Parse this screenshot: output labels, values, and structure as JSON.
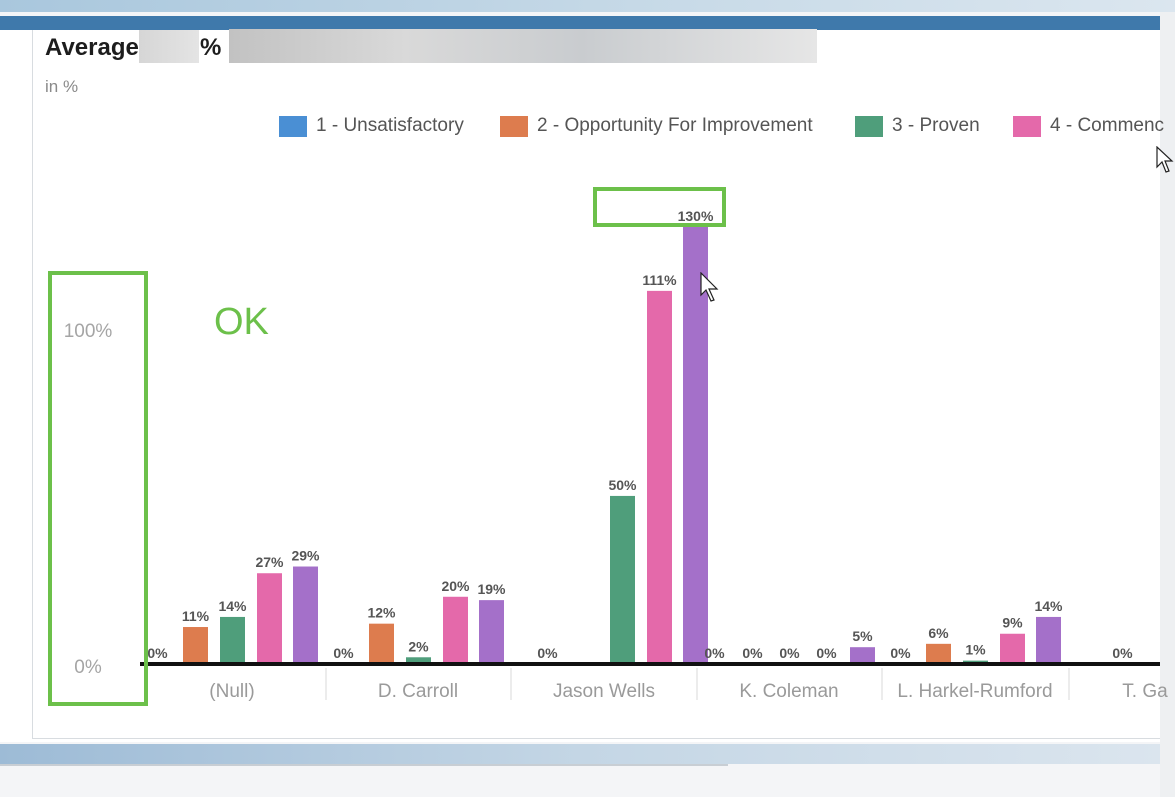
{
  "header": {
    "title_prefix": "Average",
    "title_percent": "%",
    "subtitle": "in %"
  },
  "annotations": {
    "ok_text": "OK"
  },
  "colors": {
    "header_bar": "#3f79ab",
    "highlight_box": "#6cc04a",
    "series": [
      "#4a8fd4",
      "#dd7c4e",
      "#4f9e7b",
      "#e469aa",
      "#a470c9"
    ]
  },
  "chart_data": {
    "type": "bar",
    "title": "",
    "xlabel": "",
    "ylabel": "",
    "ylim": [
      0,
      130
    ],
    "y_ticks": [
      {
        "value": 0,
        "label": "0%"
      },
      {
        "value": 100,
        "label": "100%"
      }
    ],
    "categories": [
      "(Null)",
      "D. Carroll",
      "Jason Wells",
      "K. Coleman",
      "L. Harkel-Rumford",
      "T. Ga"
    ],
    "series": [
      {
        "name": "1 - Unsatisfactory",
        "values": [
          0,
          0,
          0,
          0,
          0,
          0
        ],
        "labels": [
          "0%",
          "0%",
          "0%",
          "0%",
          "0%",
          "0%"
        ]
      },
      {
        "name": "2 - Opportunity For Improvement",
        "values": [
          11,
          12,
          0,
          0,
          6,
          null
        ],
        "labels": [
          "11%",
          "12%",
          "",
          "0%",
          "6%",
          ""
        ]
      },
      {
        "name": "3 - Proven",
        "values": [
          14,
          2,
          50,
          0,
          1,
          null
        ],
        "labels": [
          "14%",
          "2%",
          "50%",
          "0%",
          "1%",
          ""
        ]
      },
      {
        "name": "4 - Commenc",
        "values": [
          27,
          20,
          111,
          0,
          9,
          null
        ],
        "labels": [
          "27%",
          "20%",
          "111%",
          "0%",
          "9%",
          ""
        ]
      },
      {
        "name": "",
        "values": [
          29,
          19,
          130,
          5,
          14,
          null
        ],
        "labels": [
          "29%",
          "19%",
          "130%",
          "5%",
          "14%",
          ""
        ]
      }
    ],
    "grid": false,
    "legend_position": "top"
  }
}
